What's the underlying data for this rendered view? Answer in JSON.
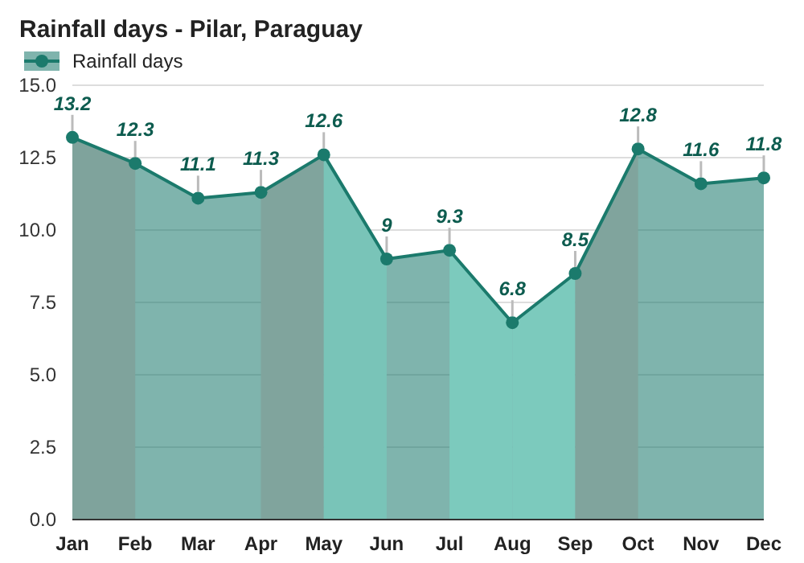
{
  "chart_data": {
    "type": "area",
    "title": "Rainfall days - Pilar, Paraguay",
    "categories": [
      "Jan",
      "Feb",
      "Mar",
      "Apr",
      "May",
      "Jun",
      "Jul",
      "Aug",
      "Sep",
      "Oct",
      "Nov",
      "Dec"
    ],
    "series": [
      {
        "name": "Rainfall days",
        "color": "#1b7a6c",
        "values": [
          13.2,
          12.3,
          11.1,
          11.3,
          12.6,
          9,
          9.3,
          6.8,
          8.5,
          12.8,
          11.6,
          11.8
        ]
      }
    ],
    "bands": [
      {
        "axis": "x",
        "from": "Jan",
        "to": "Feb",
        "color": "#7fa39c"
      },
      {
        "axis": "x",
        "from": "Apr",
        "to": "May",
        "color": "#80a49d"
      },
      {
        "axis": "x",
        "from": "May",
        "to": "Jun",
        "color": "#79c4b8"
      },
      {
        "axis": "x",
        "from": "Jul",
        "to": "Aug",
        "color": "#7ccabd"
      },
      {
        "axis": "x",
        "from": "Aug",
        "to": "Sep",
        "color": "#7ccabd"
      },
      {
        "axis": "x",
        "from": "Sep",
        "to": "Oct",
        "color": "#80a49d"
      }
    ],
    "ylim": [
      0,
      15
    ],
    "yticks": [
      {
        "value": 0,
        "label": "0.0"
      },
      {
        "value": 2.5,
        "label": "2.5"
      },
      {
        "value": 5,
        "label": "5.0"
      },
      {
        "value": 7.5,
        "label": "7.5"
      },
      {
        "value": 10,
        "label": "10.0"
      },
      {
        "value": 12.5,
        "label": "12.5"
      },
      {
        "value": 15,
        "label": "15.0"
      }
    ],
    "grid": "y",
    "legend": "top left",
    "marker": "circle",
    "data_labels": true
  }
}
